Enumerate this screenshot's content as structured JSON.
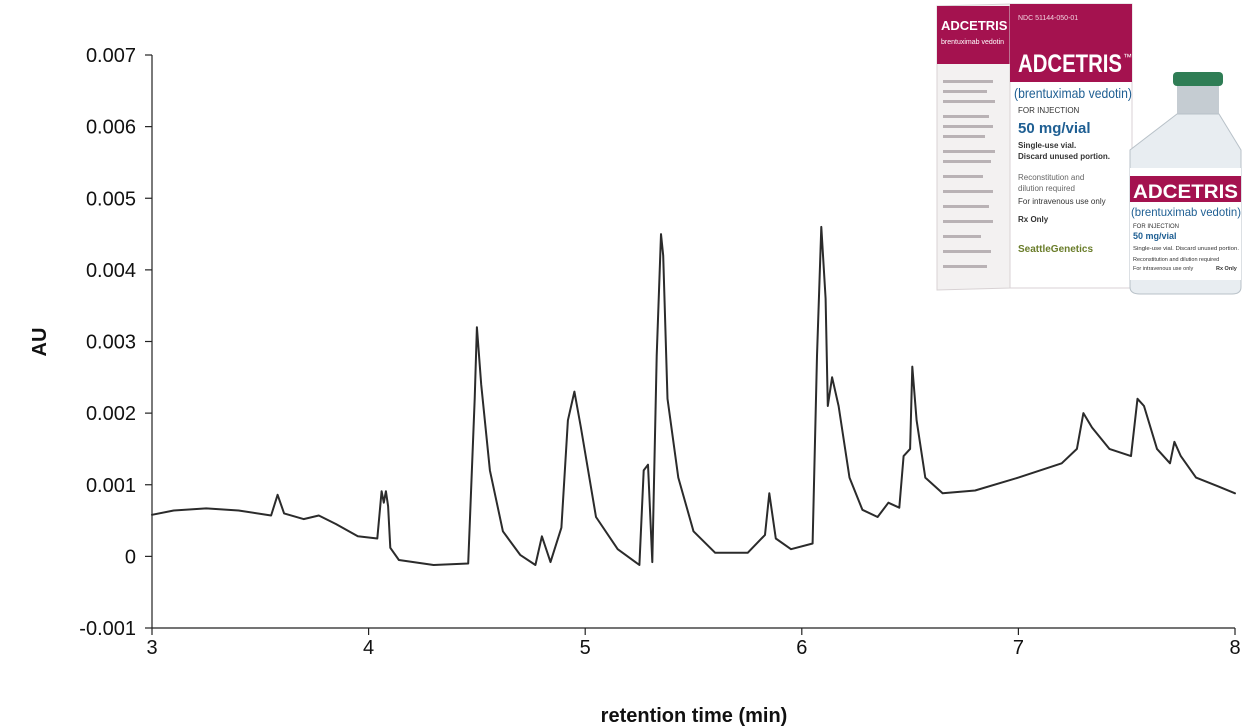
{
  "chart_data": {
    "type": "line",
    "xlabel": "retention time (min)",
    "ylabel": "AU",
    "xlim": [
      3,
      8
    ],
    "ylim": [
      -0.001,
      0.007
    ],
    "x_ticks": [
      "3",
      "4",
      "5",
      "6",
      "7",
      "8"
    ],
    "y_ticks": [
      "-0.001",
      "0",
      "0.001",
      "0.002",
      "0.003",
      "0.004",
      "0.005",
      "0.006",
      "0.007"
    ],
    "grid": false,
    "legend": "none",
    "line_color": "#2b2b2b",
    "series": [
      {
        "x": [
          3.0,
          3.1,
          3.25,
          3.4,
          3.55,
          3.58,
          3.61,
          3.7,
          3.77,
          3.85,
          3.95,
          4.04,
          4.06,
          4.07,
          4.08,
          4.09,
          4.1,
          4.14,
          4.3,
          4.46,
          4.49,
          4.5,
          4.52,
          4.56,
          4.62,
          4.7,
          4.77,
          4.8,
          4.84,
          4.89,
          4.92,
          4.95,
          4.98,
          5.05,
          5.15,
          5.25,
          5.27,
          5.29,
          5.31,
          5.33,
          5.35,
          5.36,
          5.38,
          5.43,
          5.5,
          5.6,
          5.75,
          5.83,
          5.85,
          5.88,
          5.95,
          6.05,
          6.07,
          6.09,
          6.11,
          6.12,
          6.14,
          6.17,
          6.22,
          6.28,
          6.35,
          6.4,
          6.45,
          6.47,
          6.5,
          6.51,
          6.53,
          6.57,
          6.65,
          6.8,
          7.0,
          7.2,
          7.27,
          7.3,
          7.34,
          7.42,
          7.52,
          7.55,
          7.58,
          7.64,
          7.7,
          7.72,
          7.75,
          7.82,
          7.92,
          8.0
        ],
        "y": [
          0.00058,
          0.00064,
          0.00067,
          0.00064,
          0.00057,
          0.00086,
          0.0006,
          0.00052,
          0.00057,
          0.00045,
          0.00028,
          0.00025,
          0.00091,
          0.00075,
          0.00091,
          0.0007,
          0.00012,
          -5e-05,
          -0.00012,
          -0.0001,
          0.0022,
          0.0032,
          0.0024,
          0.0012,
          0.00035,
          2e-05,
          -0.00012,
          0.00028,
          -8e-05,
          0.0004,
          0.0019,
          0.0023,
          0.0018,
          0.00055,
          0.0001,
          -0.00012,
          0.0012,
          0.00128,
          -8e-05,
          0.0028,
          0.0045,
          0.0042,
          0.0022,
          0.0011,
          0.00035,
          5e-05,
          5e-05,
          0.0003,
          0.00088,
          0.00025,
          0.0001,
          0.00018,
          0.0028,
          0.0046,
          0.0036,
          0.0021,
          0.0025,
          0.0021,
          0.0011,
          0.00065,
          0.00055,
          0.00075,
          0.00068,
          0.0014,
          0.0015,
          0.00265,
          0.0019,
          0.0011,
          0.00088,
          0.00092,
          0.0011,
          0.0013,
          0.0015,
          0.002,
          0.0018,
          0.0015,
          0.0014,
          0.0022,
          0.0021,
          0.0015,
          0.0013,
          0.0016,
          0.0014,
          0.0011,
          0.00098,
          0.00088
        ]
      }
    ]
  },
  "product_image": {
    "box": {
      "brand": "ADCETRIS",
      "trademark": "™",
      "ndc": "NDC 51144-050-01",
      "generic": "(brentuximab vedotin)",
      "route": "FOR INJECTION",
      "strength": "50 mg/vial",
      "line1": "Single-use vial.",
      "line2": "Discard unused portion.",
      "line3": "Reconstitution and",
      "line4": "dilution required",
      "line5": "For intravenous use only",
      "rx": "Rx Only",
      "company": "SeattleGenetics",
      "side_brand": "ADCETRIS",
      "side_generic": "brentuximab vedotin"
    },
    "vial": {
      "brand": "ADCETRIS",
      "generic": "(brentuximab vedotin)",
      "route": "FOR INJECTION",
      "strength": "50 mg/vial",
      "line1": "Single-use vial. Discard unused portion.",
      "line2": "Reconstitution and dilution required",
      "line3": "For intravenous use only",
      "rx": "Rx Only"
    },
    "brand_color": "#a4124f",
    "strength_color": "#1f5f93"
  }
}
